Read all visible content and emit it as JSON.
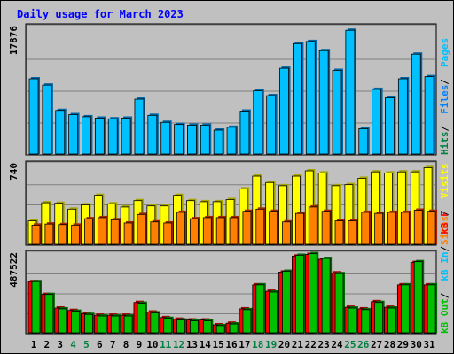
{
  "title": "Daily usage for March 2023",
  "colors": {
    "background": "#c0c0c0",
    "plot_background": "#c0c0c0",
    "title": "#0000ff",
    "pages": "#00c0ff",
    "files": "#0080ff",
    "hits": "#008040",
    "visits": "#ffff00",
    "sites": "#ff8000",
    "kb_in": "#00c0ff",
    "kb_out": "#00c000",
    "kb_f": "#ff0000",
    "weekend_label": "#008040",
    "weekday_label": "#000000"
  },
  "chart_data": [
    {
      "type": "bar",
      "panel": "hits-files-pages",
      "ymax_label": "17876",
      "ylim": [
        0,
        17876
      ],
      "grid": true,
      "legend": [
        {
          "name": "Pages",
          "color": "#00c0ff"
        },
        {
          "name": "Files",
          "color": "#0080ff"
        },
        {
          "name": "Hits",
          "color": "#008040"
        }
      ],
      "legend_separator": " / ",
      "categories": [
        "1",
        "2",
        "3",
        "4",
        "5",
        "6",
        "7",
        "8",
        "9",
        "10",
        "11",
        "12",
        "13",
        "14",
        "15",
        "16",
        "17",
        "18",
        "19",
        "20",
        "21",
        "22",
        "23",
        "24",
        "25",
        "26",
        "27",
        "28",
        "29",
        "30",
        "31"
      ],
      "series": [
        {
          "name": "Pages",
          "values": [
            10700,
            9800,
            6200,
            5600,
            5300,
            5100,
            5000,
            5100,
            7800,
            5500,
            4500,
            4200,
            4100,
            4100,
            3400,
            3800,
            6100,
            9000,
            8300,
            12200,
            15700,
            16000,
            14700,
            11900,
            17600,
            3600,
            9200,
            8000,
            10700,
            14200,
            11000
          ]
        }
      ]
    },
    {
      "type": "bar",
      "panel": "visits-sites",
      "ymax_label": "740",
      "ylim": [
        0,
        740
      ],
      "grid": true,
      "legend": [
        {
          "name": "Visits",
          "color": "#ffff00"
        },
        {
          "name": "Sites",
          "color": "#ff8000"
        }
      ],
      "legend_separator": " / ",
      "categories": [
        "1",
        "2",
        "3",
        "4",
        "5",
        "6",
        "7",
        "8",
        "9",
        "10",
        "11",
        "12",
        "13",
        "14",
        "15",
        "16",
        "17",
        "18",
        "19",
        "20",
        "21",
        "22",
        "23",
        "24",
        "25",
        "26",
        "27",
        "28",
        "29",
        "30",
        "31"
      ],
      "series": [
        {
          "name": "Visits",
          "values": [
            220,
            390,
            385,
            330,
            370,
            460,
            380,
            350,
            410,
            360,
            360,
            460,
            410,
            400,
            400,
            420,
            520,
            640,
            580,
            550,
            640,
            690,
            670,
            550,
            560,
            620,
            680,
            670,
            680,
            680,
            720
          ]
        },
        {
          "name": "Sites",
          "values": [
            180,
            190,
            185,
            180,
            240,
            250,
            230,
            200,
            280,
            210,
            200,
            300,
            240,
            250,
            250,
            250,
            310,
            330,
            310,
            210,
            290,
            350,
            310,
            220,
            220,
            300,
            290,
            300,
            300,
            320,
            310
          ]
        }
      ]
    },
    {
      "type": "bar",
      "panel": "kbytes",
      "ymax_label": "487522",
      "ylim": [
        0,
        487522
      ],
      "grid": true,
      "legend": [
        {
          "name": "kB F",
          "color": "#ff0000"
        },
        {
          "name": "kB In",
          "color": "#00c0ff"
        },
        {
          "name": "kB Out",
          "color": "#00c000"
        }
      ],
      "legend_separator": " / ",
      "categories": [
        "1",
        "2",
        "3",
        "4",
        "5",
        "6",
        "7",
        "8",
        "9",
        "10",
        "11",
        "12",
        "13",
        "14",
        "15",
        "16",
        "17",
        "18",
        "19",
        "20",
        "21",
        "22",
        "23",
        "24",
        "25",
        "26",
        "27",
        "28",
        "29",
        "30",
        "31"
      ],
      "series": [
        {
          "name": "kB F",
          "values": [
            320000,
            240000,
            155000,
            140000,
            120000,
            110000,
            110000,
            110000,
            190000,
            130000,
            95000,
            85000,
            80000,
            80000,
            50000,
            60000,
            150000,
            300000,
            260000,
            380000,
            480000,
            490000,
            460000,
            375000,
            160000,
            150000,
            195000,
            160000,
            300000,
            440000,
            300000
          ]
        },
        {
          "name": "kB Out",
          "values": [
            320000,
            240000,
            150000,
            135000,
            115000,
            105000,
            105000,
            105000,
            185000,
            125000,
            90000,
            80000,
            75000,
            75000,
            45000,
            55000,
            145000,
            300000,
            255000,
            385000,
            485000,
            495000,
            465000,
            370000,
            155000,
            145000,
            190000,
            155000,
            300000,
            445000,
            300000
          ]
        }
      ]
    }
  ],
  "day_labels": [
    "1",
    "2",
    "3",
    "4",
    "5",
    "6",
    "7",
    "8",
    "9",
    "10",
    "11",
    "12",
    "13",
    "14",
    "15",
    "16",
    "17",
    "18",
    "19",
    "20",
    "21",
    "22",
    "23",
    "24",
    "25",
    "26",
    "27",
    "28",
    "29",
    "30",
    "31"
  ],
  "weekend_days": [
    "4",
    "5",
    "11",
    "12",
    "18",
    "19",
    "25",
    "26"
  ]
}
